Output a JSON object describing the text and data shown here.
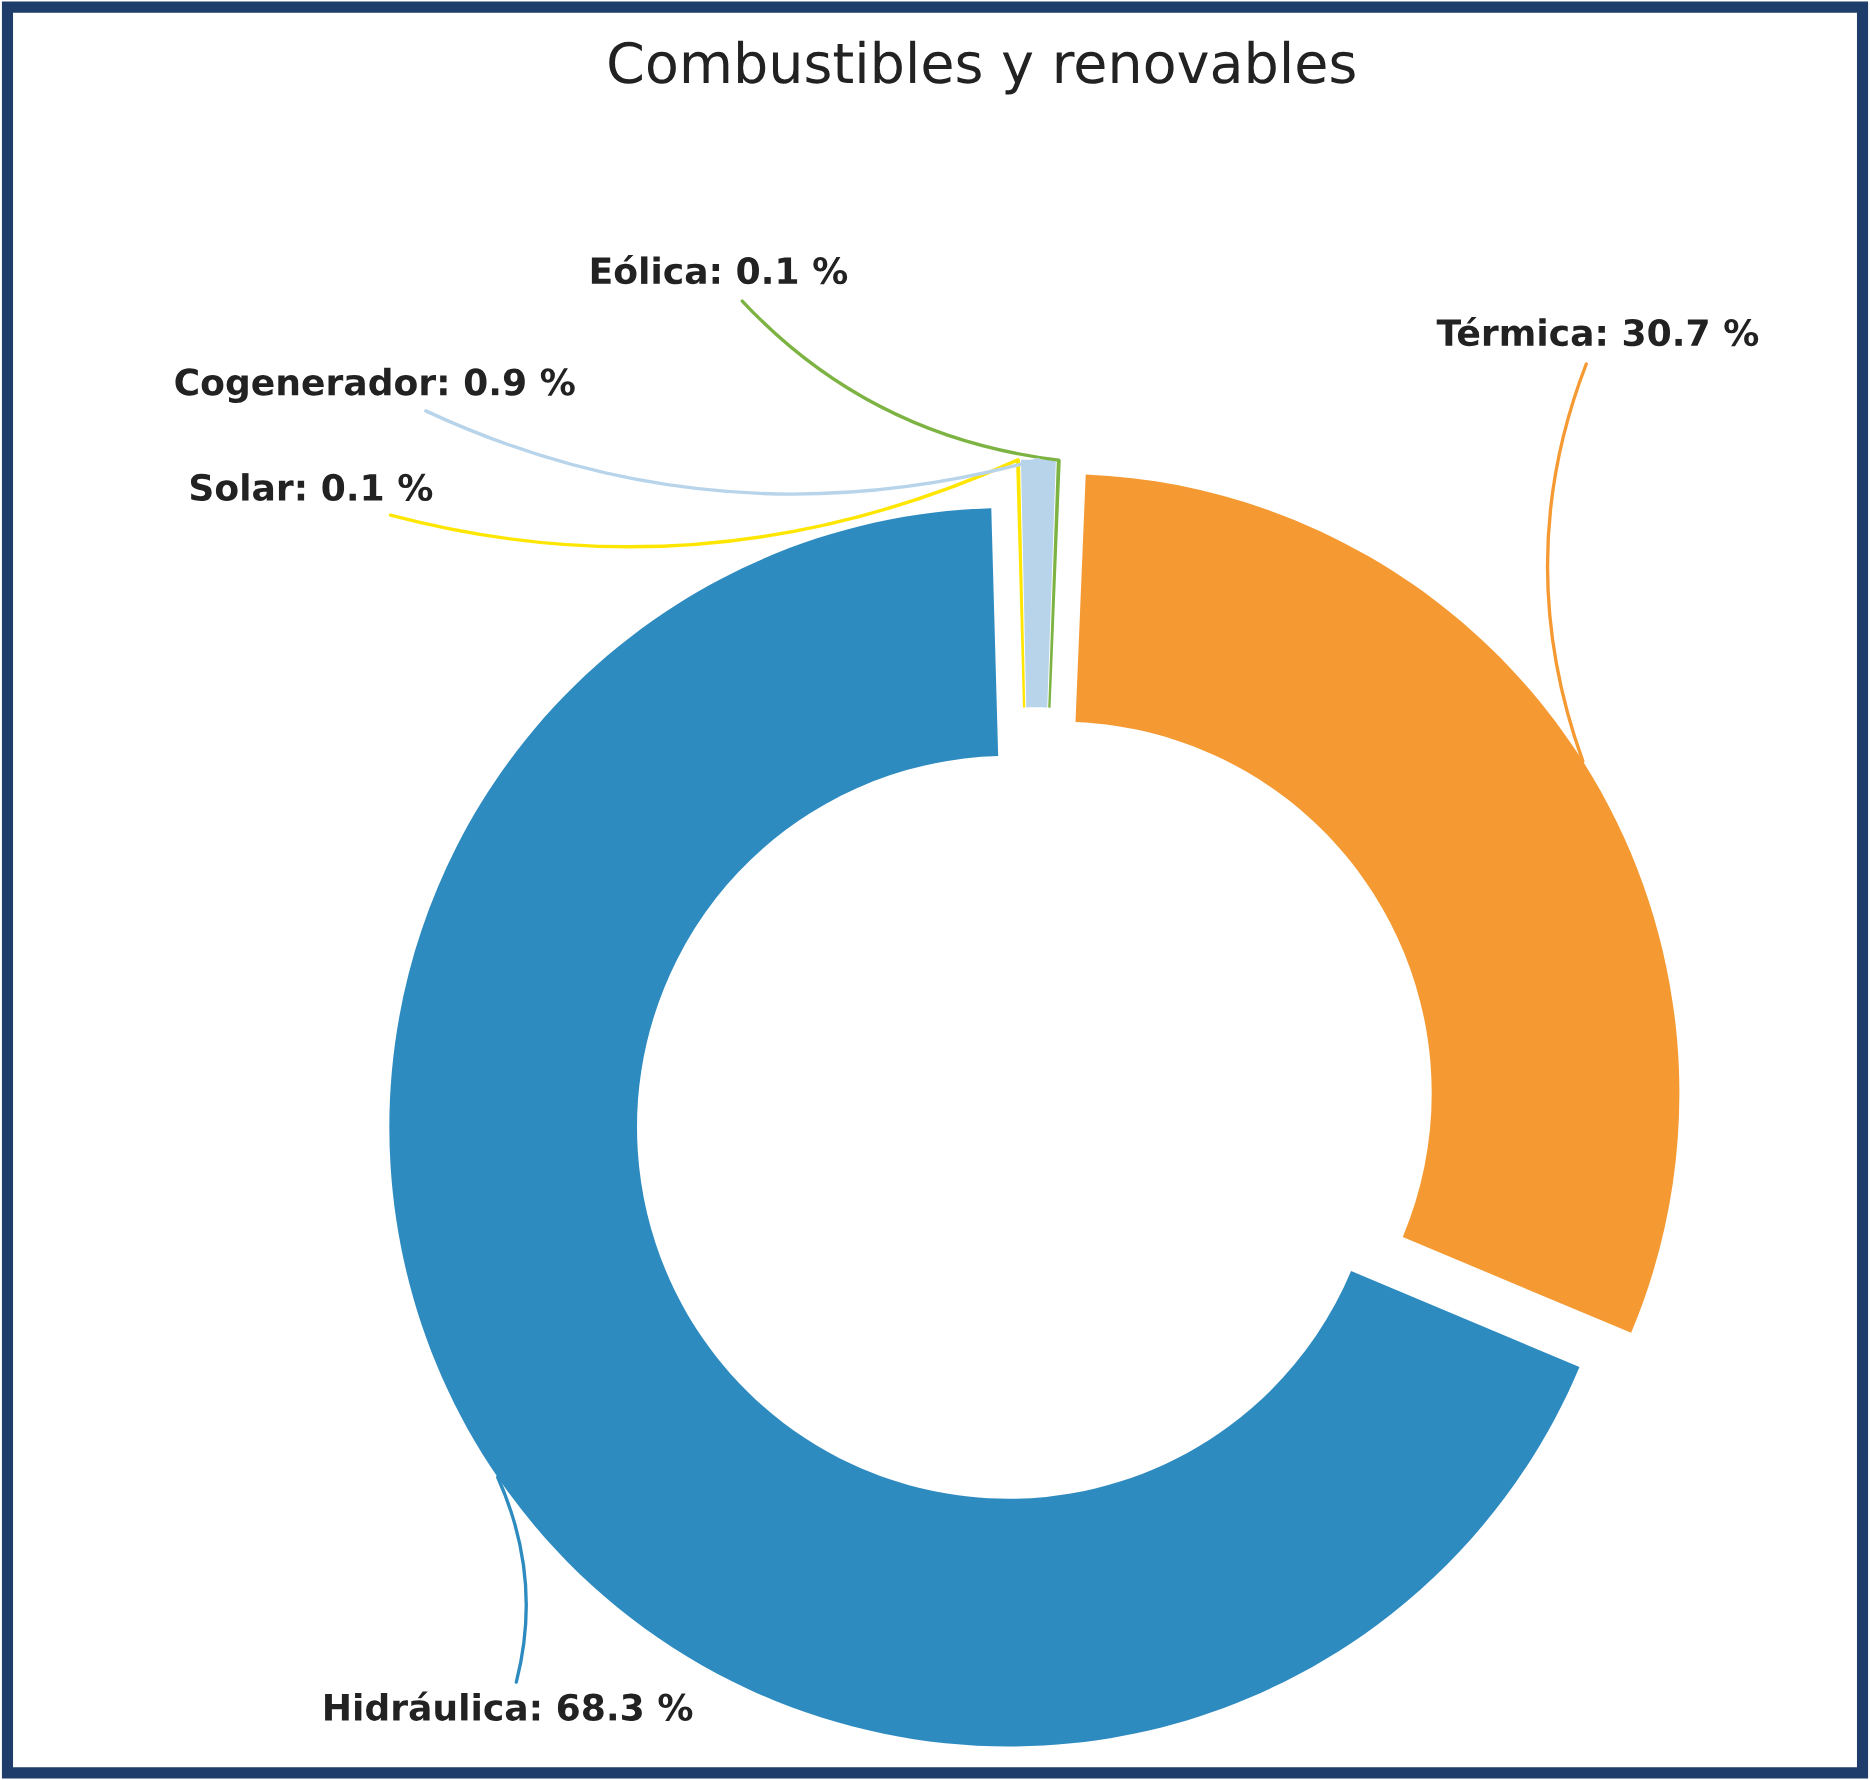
{
  "chart_data": {
    "type": "donut",
    "title": "Combustibles y renovables",
    "categories": [
      "Eólica",
      "Térmica",
      "Hidráulica",
      "Solar",
      "Cogenerador"
    ],
    "values": [
      0.1,
      30.7,
      68.3,
      0.1,
      0.9
    ],
    "colors": [
      "#7cb342",
      "#f59a33",
      "#2e8bc0",
      "#ffe600",
      "#b8d4ea"
    ],
    "value_labels": [
      "0.1 %",
      "30.7 %",
      "68.3 %",
      "0.1 %",
      "0.9 %"
    ]
  }
}
